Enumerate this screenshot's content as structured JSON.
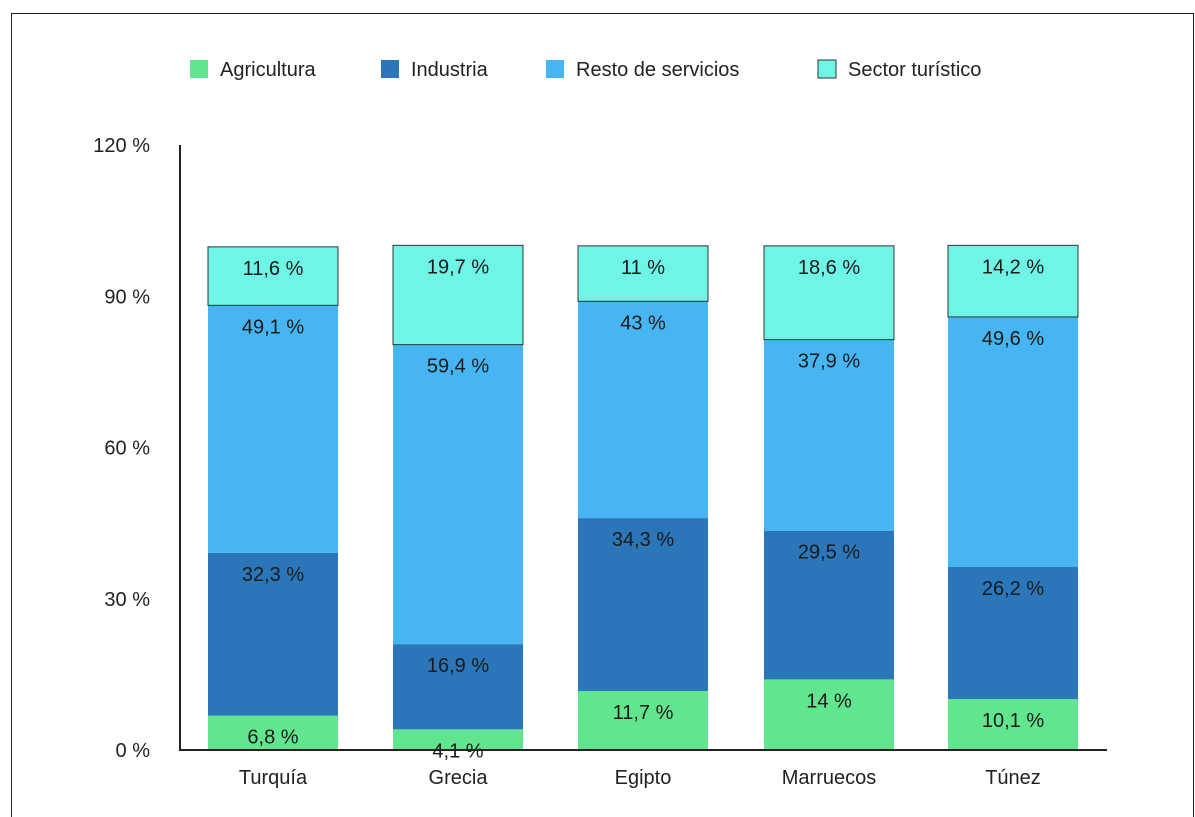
{
  "chart_data": {
    "type": "bar",
    "stacked": true,
    "title": "",
    "xlabel": "",
    "ylabel": "",
    "ylim": [
      0,
      120
    ],
    "y_ticks": [
      "0 %",
      "30 %",
      "60 %",
      "90 %",
      "120 %"
    ],
    "y_tick_values": [
      0,
      30,
      60,
      90,
      120
    ],
    "legend_position": "top",
    "grid": false,
    "categories": [
      "Turquía",
      "Grecia",
      "Egipto",
      "Marruecos",
      "Túnez"
    ],
    "series": [
      {
        "name": "Agricultura",
        "color": "#62e58f",
        "values": [
          6.8,
          4.1,
          11.7,
          14,
          10.1
        ],
        "labels": [
          "6,8 %",
          "4,1 %",
          "11,7 %",
          "14 %",
          "10,1 %"
        ]
      },
      {
        "name": "Industria",
        "color": "#2a76b8",
        "values": [
          32.3,
          16.9,
          34.3,
          29.5,
          26.2
        ],
        "labels": [
          "32,3 %",
          "16,9 %",
          "34,3 %",
          "29,5 %",
          "26,2 %"
        ]
      },
      {
        "name": "Resto de servicios",
        "color": "#47b5f1",
        "values": [
          49.1,
          59.4,
          43,
          37.9,
          49.6
        ],
        "labels": [
          "49,1 %",
          "59,4 %",
          "43 %",
          "37,9 %",
          "49,6 %"
        ]
      },
      {
        "name": "Sector turístico",
        "color": "#6ff5e6",
        "values": [
          11.6,
          19.7,
          11,
          18.6,
          14.2
        ],
        "labels": [
          "11,6 %",
          "19,7 %",
          "11 %",
          "18,6 %",
          "14,2 %"
        ]
      }
    ]
  }
}
